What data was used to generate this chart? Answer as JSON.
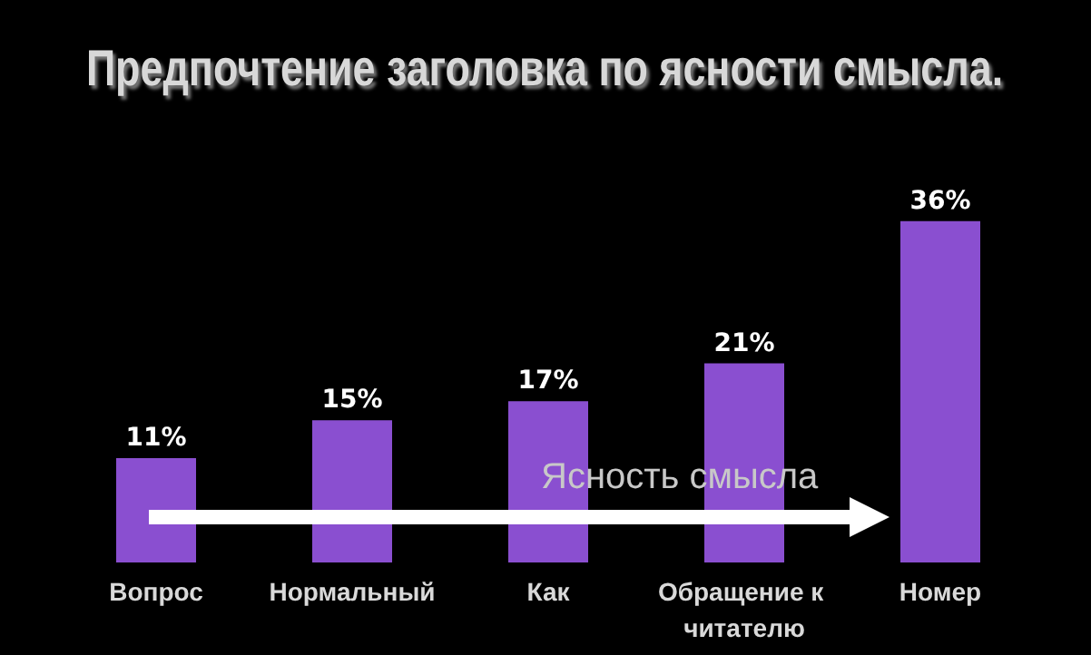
{
  "chart_data": {
    "type": "bar",
    "title": "Предпочтение заголовка по ясности смысла.",
    "categories": [
      "Вопрос",
      "Нормальный",
      "Как",
      "Обращение к читателю",
      "Номер"
    ],
    "values": [
      11,
      15,
      17,
      21,
      36
    ],
    "value_labels": [
      "11%",
      "15%",
      "17%",
      "21%",
      "36%"
    ],
    "color": "#8a4fd0",
    "annotations": [
      "Ясность смысла"
    ]
  }
}
